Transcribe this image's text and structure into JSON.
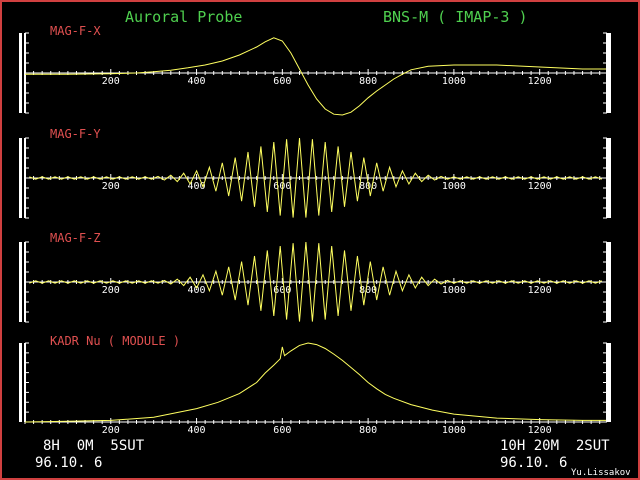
{
  "header": {
    "left_title": "Auroral Probe",
    "right_title": "BNS-M ( IMAP-3 )"
  },
  "colors": {
    "trace": "#ffff60",
    "axis": "#ffffff",
    "title": "#4fd04f",
    "panel_label": "#e05050",
    "border": "#d04040",
    "background": "#000000"
  },
  "footer": {
    "start_time": "8H  0M  5SUT",
    "start_date": "96.10. 6",
    "end_time": "10H 20M  2SUT",
    "end_date": "96.10. 6",
    "signature": "Yu.Lissakov"
  },
  "chart_data": [
    {
      "type": "line",
      "title": "MAG-F-X",
      "xlim": [
        0,
        1357
      ],
      "ylim": [
        -1,
        1
      ],
      "xticks": [
        200,
        400,
        600,
        800,
        1000,
        1200
      ],
      "baseline": "center",
      "x": [
        0,
        100,
        200,
        260,
        300,
        340,
        380,
        420,
        460,
        500,
        540,
        560,
        580,
        600,
        620,
        640,
        660,
        680,
        700,
        720,
        740,
        760,
        780,
        800,
        820,
        840,
        860,
        880,
        900,
        940,
        1000,
        1100,
        1200,
        1300,
        1355
      ],
      "y": [
        -0.03,
        -0.03,
        -0.02,
        0,
        0.03,
        0.07,
        0.13,
        0.2,
        0.3,
        0.45,
        0.65,
        0.78,
        0.88,
        0.8,
        0.5,
        0.1,
        -0.3,
        -0.65,
        -0.9,
        -1.03,
        -1.05,
        -0.98,
        -0.82,
        -0.62,
        -0.45,
        -0.3,
        -0.15,
        -0.03,
        0.08,
        0.17,
        0.2,
        0.2,
        0.15,
        0.1,
        0.1
      ]
    },
    {
      "type": "line",
      "title": "MAG-F-Y",
      "xlim": [
        0,
        1357
      ],
      "ylim": [
        -1,
        1
      ],
      "xticks": [
        200,
        400,
        600,
        800,
        1000,
        1200
      ],
      "baseline": "center",
      "x": [
        10,
        25,
        40,
        55,
        70,
        85,
        100,
        115,
        130,
        145,
        160,
        175,
        190,
        205,
        220,
        235,
        250,
        265,
        280,
        295,
        310,
        325,
        340,
        355,
        370,
        385,
        400,
        415,
        430,
        445,
        460,
        475,
        490,
        505,
        520,
        535,
        550,
        565,
        580,
        595,
        610,
        625,
        640,
        655,
        670,
        685,
        700,
        715,
        730,
        745,
        760,
        775,
        790,
        805,
        820,
        835,
        850,
        865,
        880,
        895,
        910,
        925,
        940,
        955,
        970,
        985,
        1000,
        1015,
        1030,
        1045,
        1060,
        1075,
        1090,
        1105,
        1120,
        1135,
        1150,
        1165,
        1180,
        1195,
        1210,
        1225,
        1240,
        1255,
        1270,
        1285,
        1300,
        1315,
        1330,
        1345
      ],
      "y": [
        0.03,
        -0.03,
        0.03,
        -0.03,
        0.03,
        -0.03,
        0.03,
        -0.03,
        0.03,
        -0.03,
        0.03,
        -0.03,
        0.03,
        -0.03,
        0.03,
        -0.03,
        0.03,
        -0.03,
        0.03,
        -0.03,
        0.04,
        -0.05,
        0.07,
        -0.09,
        0.12,
        -0.15,
        0.18,
        -0.22,
        0.27,
        -0.33,
        0.38,
        -0.45,
        0.51,
        -0.58,
        0.65,
        -0.72,
        0.79,
        -0.85,
        0.9,
        -0.94,
        0.97,
        -0.99,
        1.0,
        -0.99,
        0.97,
        -0.94,
        0.9,
        -0.85,
        0.79,
        -0.72,
        0.65,
        -0.58,
        0.51,
        -0.45,
        0.38,
        -0.33,
        0.27,
        -0.22,
        0.18,
        -0.15,
        0.12,
        -0.09,
        0.07,
        -0.05,
        0.04,
        -0.03,
        0.03,
        -0.03,
        0.03,
        -0.03,
        0.03,
        -0.03,
        0.03,
        -0.03,
        0.03,
        -0.03,
        0.03,
        -0.03,
        0.03,
        -0.03,
        0.03,
        -0.03,
        0.03,
        -0.03,
        0.03,
        -0.03,
        0.03,
        -0.03,
        0.03,
        -0.03
      ]
    },
    {
      "type": "line",
      "title": "MAG-F-Z",
      "xlim": [
        0,
        1357
      ],
      "ylim": [
        -1,
        1
      ],
      "xticks": [
        200,
        400,
        600,
        800,
        1000,
        1200
      ],
      "baseline": "center",
      "x": [
        10,
        25,
        40,
        55,
        70,
        85,
        100,
        115,
        130,
        145,
        160,
        175,
        190,
        205,
        220,
        235,
        250,
        265,
        280,
        295,
        310,
        325,
        340,
        355,
        370,
        385,
        400,
        415,
        430,
        445,
        460,
        475,
        490,
        505,
        520,
        535,
        550,
        565,
        580,
        595,
        610,
        625,
        640,
        655,
        670,
        685,
        700,
        715,
        730,
        745,
        760,
        775,
        790,
        805,
        820,
        835,
        850,
        865,
        880,
        895,
        910,
        925,
        940,
        955,
        970,
        985,
        1000,
        1015,
        1030,
        1045,
        1060,
        1075,
        1090,
        1105,
        1120,
        1135,
        1150,
        1165,
        1180,
        1195,
        1210,
        1225,
        1240,
        1255,
        1270,
        1285,
        1300,
        1315,
        1330,
        1345
      ],
      "y": [
        -0.03,
        0.03,
        -0.03,
        0.03,
        -0.03,
        0.03,
        -0.03,
        0.03,
        -0.03,
        0.03,
        -0.03,
        0.03,
        -0.03,
        0.03,
        -0.03,
        0.03,
        -0.03,
        0.03,
        -0.03,
        0.03,
        -0.03,
        0.04,
        -0.05,
        0.07,
        -0.09,
        0.12,
        -0.15,
        0.18,
        -0.22,
        0.27,
        -0.33,
        0.38,
        -0.45,
        0.51,
        -0.58,
        0.65,
        -0.72,
        0.79,
        -0.85,
        0.9,
        -0.94,
        0.97,
        -0.99,
        1.0,
        -0.99,
        0.97,
        -0.94,
        0.9,
        -0.85,
        0.79,
        -0.72,
        0.65,
        -0.58,
        0.51,
        -0.45,
        0.38,
        -0.33,
        0.27,
        -0.22,
        0.18,
        -0.15,
        0.12,
        -0.09,
        0.07,
        -0.05,
        0.04,
        -0.03,
        0.03,
        -0.03,
        0.03,
        -0.03,
        0.03,
        -0.03,
        0.03,
        -0.03,
        0.03,
        -0.03,
        0.03,
        -0.03,
        0.03,
        -0.03,
        0.03,
        -0.03,
        0.03,
        -0.03,
        0.03,
        -0.03,
        0.03,
        -0.03,
        0.03
      ]
    },
    {
      "type": "line",
      "title": "KADR Nu ( MODULE )",
      "xlim": [
        0,
        1357
      ],
      "ylim": [
        0,
        1
      ],
      "xticks": [
        200,
        400,
        600,
        800,
        1000,
        1200
      ],
      "baseline": "bottom",
      "x": [
        0,
        100,
        200,
        300,
        400,
        450,
        500,
        540,
        560,
        580,
        595,
        600,
        605,
        620,
        640,
        660,
        680,
        700,
        720,
        740,
        760,
        780,
        800,
        820,
        840,
        860,
        900,
        950,
        1000,
        1100,
        1200,
        1300,
        1355
      ],
      "y": [
        0.0,
        0.01,
        0.02,
        0.06,
        0.17,
        0.25,
        0.36,
        0.5,
        0.62,
        0.72,
        0.8,
        0.95,
        0.84,
        0.9,
        0.97,
        1.0,
        0.98,
        0.93,
        0.86,
        0.78,
        0.69,
        0.6,
        0.5,
        0.42,
        0.35,
        0.3,
        0.22,
        0.15,
        0.1,
        0.05,
        0.03,
        0.02,
        0.02
      ]
    }
  ]
}
